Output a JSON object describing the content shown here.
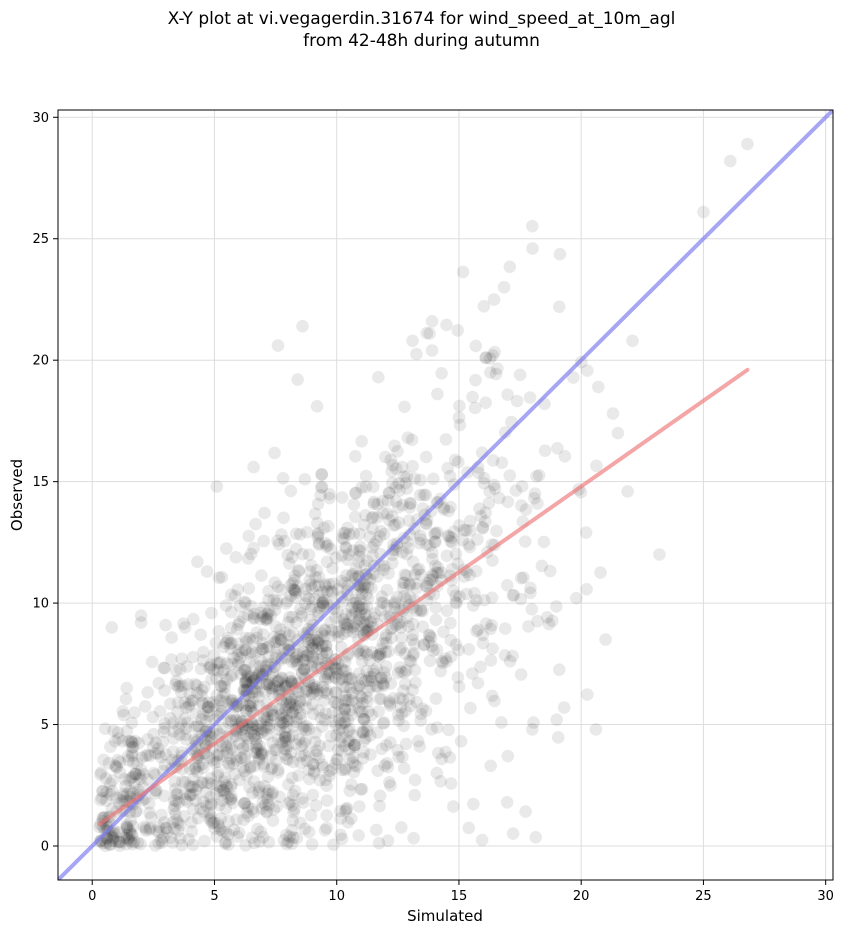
{
  "chart_data": {
    "type": "scatter",
    "title_line1": "X-Y plot at vi.vegagerdin.31674 for wind_speed_at_10m_agl",
    "title_line2": "from 42-48h during autumn",
    "xlabel": "Simulated",
    "ylabel": "Observed",
    "xlim": [
      -1.4,
      30.3
    ],
    "ylim": [
      -1.4,
      30.3
    ],
    "xticks": [
      0,
      5,
      10,
      15,
      20,
      25,
      30
    ],
    "yticks": [
      0,
      5,
      10,
      15,
      20,
      25,
      30
    ],
    "grid": true,
    "colors": {
      "points": "#000000",
      "identity_line": "#7777ee",
      "regression_line": "#ee7777",
      "grid": "#dddddd"
    },
    "identity_line": {
      "x": [
        -1.4,
        30.3
      ],
      "y": [
        -1.4,
        30.3
      ]
    },
    "regression_line": {
      "x": [
        0.3,
        26.8
      ],
      "y": [
        0.9,
        19.6
      ]
    },
    "outliers": [
      [
        26.8,
        28.9
      ],
      [
        26.1,
        28.2
      ],
      [
        25.0,
        26.1
      ],
      [
        19.1,
        22.2
      ],
      [
        22.1,
        20.8
      ],
      [
        23.2,
        12.0
      ],
      [
        20.6,
        4.8
      ],
      [
        16.3,
        3.3
      ],
      [
        14.1,
        3.0
      ],
      [
        17.0,
        3.7
      ],
      [
        13.9,
        21.6
      ],
      [
        13.8,
        21.1
      ],
      [
        8.6,
        21.4
      ],
      [
        7.6,
        20.6
      ],
      [
        16.1,
        20.1
      ],
      [
        13.9,
        20.4
      ],
      [
        13.1,
        20.8
      ],
      [
        8.4,
        19.2
      ],
      [
        9.2,
        18.1
      ],
      [
        11.7,
        19.3
      ],
      [
        4.3,
        11.7
      ],
      [
        4.7,
        11.3
      ],
      [
        5.1,
        14.8
      ],
      [
        6.6,
        15.6
      ],
      [
        0.8,
        9.0
      ],
      [
        2.0,
        9.2
      ],
      [
        3.0,
        9.1
      ],
      [
        3.8,
        9.0
      ],
      [
        19.3,
        5.7
      ],
      [
        19.0,
        5.2
      ],
      [
        18.0,
        4.8
      ],
      [
        21.9,
        14.6
      ],
      [
        21.3,
        17.8
      ],
      [
        20.7,
        18.9
      ],
      [
        21.5,
        17.0
      ],
      [
        20.2,
        12.9
      ],
      [
        19.8,
        10.2
      ],
      [
        21.0,
        8.5
      ],
      [
        18.5,
        18.2
      ],
      [
        17.5,
        19.4
      ]
    ],
    "cloud": {
      "count": 1900,
      "seed": 31674,
      "x_mean": 8.5,
      "x_sd": 4.6,
      "slope": 0.7,
      "intercept": 0.9,
      "resid_sd": 3.3
    }
  }
}
